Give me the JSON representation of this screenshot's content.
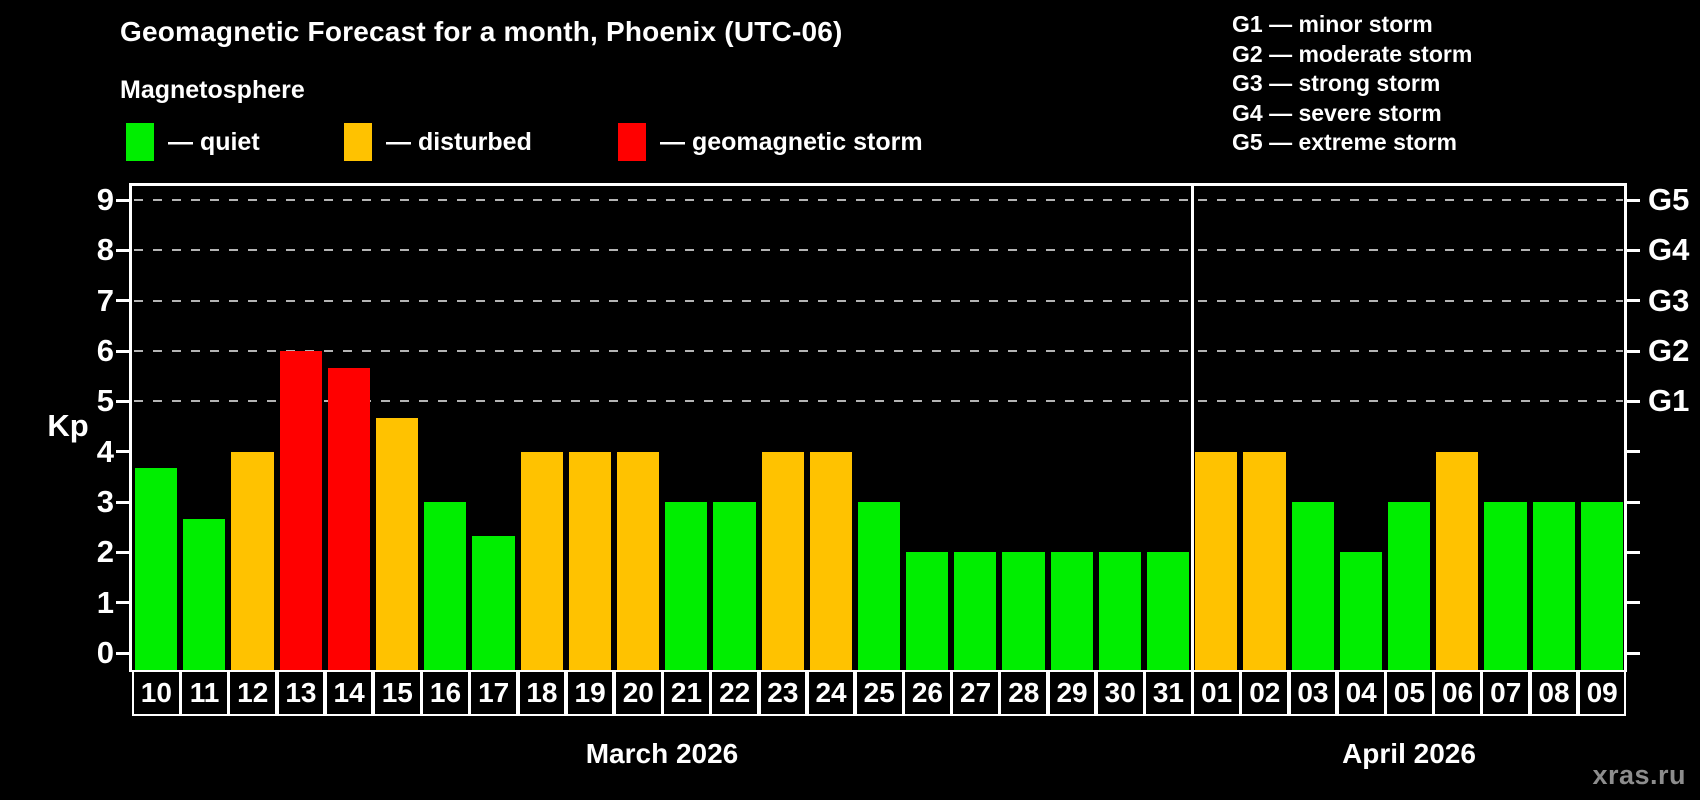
{
  "title": "Geomagnetic Forecast for a month, Phoenix (UTC-06)",
  "subtitle": "Magnetosphere",
  "legend": {
    "items": [
      {
        "name": "quiet",
        "label": "— quiet",
        "color": "#00ee00"
      },
      {
        "name": "disturbed",
        "label": "— disturbed",
        "color": "#ffc200"
      },
      {
        "name": "storm",
        "label": "— geomagnetic storm",
        "color": "#ff0000"
      }
    ]
  },
  "g_legend": [
    "G1 — minor storm",
    "G2 — moderate storm",
    "G3 — strong storm",
    "G4 — severe storm",
    "G5 — extreme storm"
  ],
  "watermark": "xras.ru",
  "chart_data": {
    "type": "bar",
    "title": "Geomagnetic Forecast for a month, Phoenix (UTC-06)",
    "ylabel": "Kp",
    "ylim": [
      0,
      9
    ],
    "yticks": [
      0,
      1,
      2,
      3,
      4,
      5,
      6,
      7,
      8,
      9
    ],
    "grid": "dashed horizontal at Kp 5-9 only",
    "right_axis": [
      {
        "label": "G1",
        "kp": 5
      },
      {
        "label": "G2",
        "kp": 6
      },
      {
        "label": "G3",
        "kp": 7
      },
      {
        "label": "G4",
        "kp": 8
      },
      {
        "label": "G5",
        "kp": 9
      }
    ],
    "status_colors": {
      "quiet": "#00ee00",
      "disturbed": "#ffc200",
      "storm": "#ff0000"
    },
    "months": [
      {
        "label": "March 2026",
        "days": [
          {
            "day": "10",
            "kp": 3.67,
            "status": "quiet"
          },
          {
            "day": "11",
            "kp": 2.67,
            "status": "quiet"
          },
          {
            "day": "12",
            "kp": 4.0,
            "status": "disturbed"
          },
          {
            "day": "13",
            "kp": 6.0,
            "status": "storm"
          },
          {
            "day": "14",
            "kp": 5.67,
            "status": "storm"
          },
          {
            "day": "15",
            "kp": 4.67,
            "status": "disturbed"
          },
          {
            "day": "16",
            "kp": 3.0,
            "status": "quiet"
          },
          {
            "day": "17",
            "kp": 2.33,
            "status": "quiet"
          },
          {
            "day": "18",
            "kp": 4.0,
            "status": "disturbed"
          },
          {
            "day": "19",
            "kp": 4.0,
            "status": "disturbed"
          },
          {
            "day": "20",
            "kp": 4.0,
            "status": "disturbed"
          },
          {
            "day": "21",
            "kp": 3.0,
            "status": "quiet"
          },
          {
            "day": "22",
            "kp": 3.0,
            "status": "quiet"
          },
          {
            "day": "23",
            "kp": 4.0,
            "status": "disturbed"
          },
          {
            "day": "24",
            "kp": 4.0,
            "status": "disturbed"
          },
          {
            "day": "25",
            "kp": 3.0,
            "status": "quiet"
          },
          {
            "day": "26",
            "kp": 2.0,
            "status": "quiet"
          },
          {
            "day": "27",
            "kp": 2.0,
            "status": "quiet"
          },
          {
            "day": "28",
            "kp": 2.0,
            "status": "quiet"
          },
          {
            "day": "29",
            "kp": 2.0,
            "status": "quiet"
          },
          {
            "day": "30",
            "kp": 2.0,
            "status": "quiet"
          },
          {
            "day": "31",
            "kp": 2.0,
            "status": "quiet"
          }
        ]
      },
      {
        "label": "April 2026",
        "days": [
          {
            "day": "01",
            "kp": 4.0,
            "status": "disturbed"
          },
          {
            "day": "02",
            "kp": 4.0,
            "status": "disturbed"
          },
          {
            "day": "03",
            "kp": 3.0,
            "status": "quiet"
          },
          {
            "day": "04",
            "kp": 2.0,
            "status": "quiet"
          },
          {
            "day": "05",
            "kp": 3.0,
            "status": "quiet"
          },
          {
            "day": "06",
            "kp": 4.0,
            "status": "disturbed"
          },
          {
            "day": "07",
            "kp": 3.0,
            "status": "quiet"
          },
          {
            "day": "08",
            "kp": 3.0,
            "status": "quiet"
          },
          {
            "day": "09",
            "kp": 3.0,
            "status": "quiet"
          }
        ]
      }
    ]
  }
}
